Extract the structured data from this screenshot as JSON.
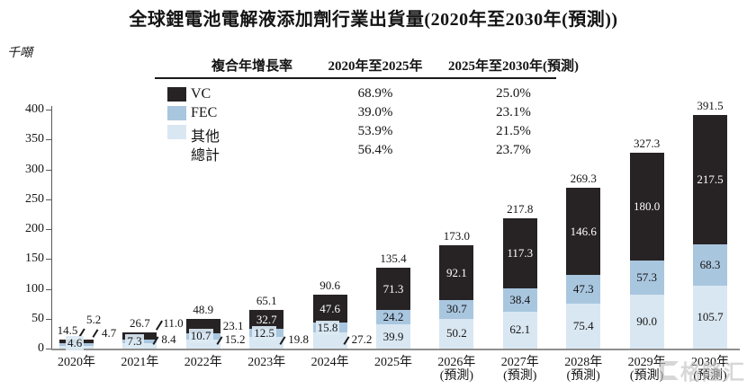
{
  "title": "全球鋰電池電解液添加劑行業出貨量(2020年至2030年(預測))",
  "y_axis": {
    "unit": "千噸"
  },
  "cagr_table": {
    "header": {
      "label": "複合年增長率",
      "col1": "2020年至2025年",
      "col2": "2025年至2030年(預測)"
    },
    "rows": [
      {
        "name": "VC",
        "swatch": "#272324",
        "c1": "68.9%",
        "c2": "25.0%"
      },
      {
        "name": "FEC",
        "swatch": "#a9c6df",
        "c1": "39.0%",
        "c2": "23.1%"
      },
      {
        "name": "其他",
        "swatch": "#d9e7f2",
        "c1": "53.9%",
        "c2": "21.5%"
      },
      {
        "name": "總計",
        "swatch": "",
        "c1": "56.4%",
        "c2": "23.7%"
      }
    ]
  },
  "chart_data": {
    "type": "bar",
    "stacked": true,
    "title": "全球鋰電池電解液添加劑行業出貨量(2020年至2030年(預測))",
    "ylabel": "千噸",
    "ylim": [
      0,
      400
    ],
    "ytick_step": 50,
    "grid": false,
    "legend_position": "top-left-table",
    "categories": [
      {
        "label": "2020年",
        "sub": ""
      },
      {
        "label": "2021年",
        "sub": ""
      },
      {
        "label": "2022年",
        "sub": ""
      },
      {
        "label": "2023年",
        "sub": ""
      },
      {
        "label": "2024年",
        "sub": ""
      },
      {
        "label": "2025年",
        "sub": ""
      },
      {
        "label": "2026年",
        "sub": "(預測)"
      },
      {
        "label": "2027年",
        "sub": "(預測)"
      },
      {
        "label": "2028年",
        "sub": "(預測)"
      },
      {
        "label": "2029年",
        "sub": "(預測)"
      },
      {
        "label": "2030年",
        "sub": "(預測)"
      }
    ],
    "series": [
      {
        "name": "其他",
        "color": "#d9e7f2",
        "values": [
          4.6,
          8.4,
          15.2,
          19.8,
          27.2,
          39.9,
          50.2,
          62.1,
          75.4,
          90.0,
          105.7
        ]
      },
      {
        "name": "FEC",
        "color": "#a9c6df",
        "values": [
          4.7,
          7.3,
          10.7,
          12.5,
          15.8,
          24.2,
          30.7,
          38.4,
          47.3,
          57.3,
          68.3
        ]
      },
      {
        "name": "VC",
        "color": "#272324",
        "values": [
          5.2,
          11.0,
          23.1,
          32.7,
          47.6,
          71.3,
          92.1,
          117.3,
          146.6,
          180.0,
          217.5
        ]
      }
    ],
    "totals": [
      14.5,
      26.7,
      48.9,
      65.1,
      90.6,
      135.4,
      173.0,
      217.8,
      269.3,
      327.3,
      391.5
    ]
  },
  "watermark": {
    "text": "格隆汇"
  }
}
